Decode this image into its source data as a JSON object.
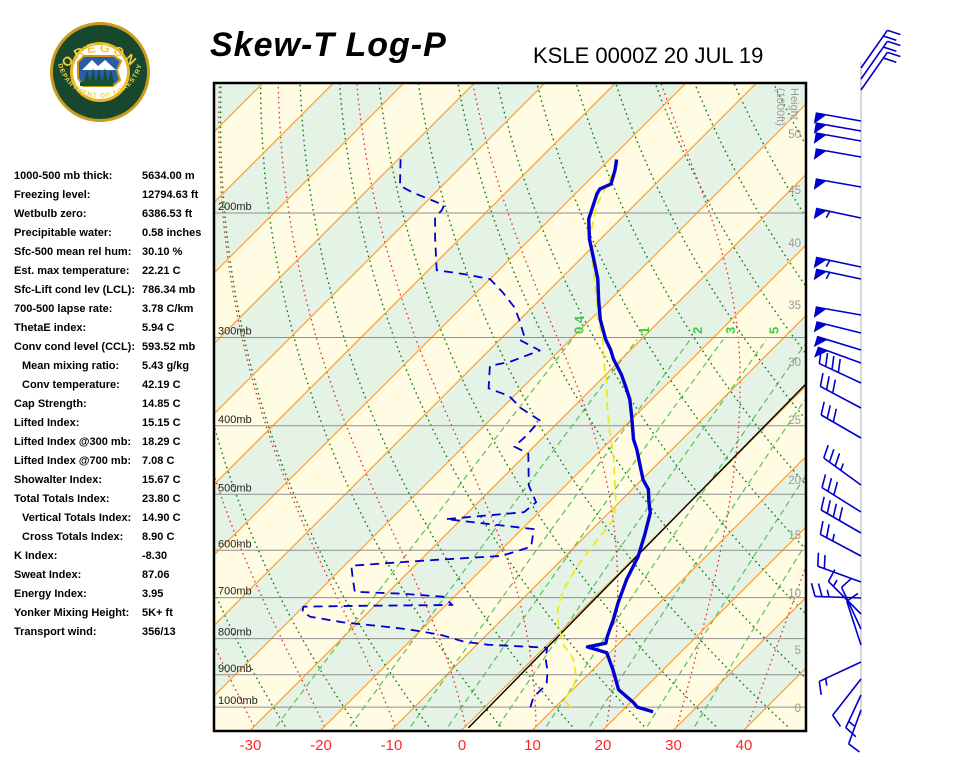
{
  "header": {
    "title": "Skew-T Log-P",
    "station_line": "KSLE 0000Z 20 JUL 19"
  },
  "logo": {
    "arc_top_text": "OREGON",
    "arc_bottom_text": "DEPARTMENT OF FORESTRY"
  },
  "stats": [
    {
      "label": "1000-500 mb thick:",
      "value": "5634.00 m",
      "indent": 0
    },
    {
      "label": "Freezing level:",
      "value": "12794.63 ft",
      "indent": 0
    },
    {
      "label": "Wetbulb zero:",
      "value": "6386.53 ft",
      "indent": 0
    },
    {
      "label": "Precipitable water:",
      "value": "0.58 inches",
      "indent": 0
    },
    {
      "label": "Sfc-500 mean rel hum:",
      "value": "30.10 %",
      "indent": 0
    },
    {
      "label": "Est. max temperature:",
      "value": "22.21 C",
      "indent": 0
    },
    {
      "label": "Sfc-Lift cond lev (LCL):",
      "value": "786.34 mb",
      "indent": 0
    },
    {
      "label": "700-500 lapse rate:",
      "value": "3.78 C/km",
      "indent": 0
    },
    {
      "label": "ThetaE index:",
      "value": "5.94 C",
      "indent": 0
    },
    {
      "label": "Conv cond level (CCL):",
      "value": "593.52 mb",
      "indent": 0
    },
    {
      "label": "Mean mixing ratio:",
      "value": "5.43 g/kg",
      "indent": 1
    },
    {
      "label": "Conv temperature:",
      "value": "42.19 C",
      "indent": 1
    },
    {
      "label": "Cap Strength:",
      "value": "14.85 C",
      "indent": 0
    },
    {
      "label": "Lifted Index:",
      "value": "15.15 C",
      "indent": 0
    },
    {
      "label": "Lifted Index @300 mb:",
      "value": "18.29 C",
      "indent": 0
    },
    {
      "label": "Lifted Index @700 mb:",
      "value": "7.08 C",
      "indent": 0
    },
    {
      "label": "Showalter Index:",
      "value": "15.67 C",
      "indent": 0
    },
    {
      "label": "Total Totals Index:",
      "value": "23.80 C",
      "indent": 0
    },
    {
      "label": "Vertical Totals Index:",
      "value": "14.90 C",
      "indent": 1
    },
    {
      "label": "Cross Totals Index:",
      "value": "8.90 C",
      "indent": 1
    },
    {
      "label": "K Index:",
      "value": "-8.30",
      "indent": 0
    },
    {
      "label": "Sweat Index:",
      "value": "87.06",
      "indent": 0
    },
    {
      "label": "Energy Index:",
      "value": "3.95",
      "indent": 0
    },
    {
      "label": "Yonker Mixing Height:",
      "value": "5K+ ft",
      "indent": 0
    },
    {
      "label": "Transport wind:",
      "value": "356/13",
      "indent": 0
    }
  ],
  "chart_data": {
    "type": "skewt-log-p",
    "title": "Skew-T Log-P",
    "station": "KSLE 0000Z 20 JUL 19",
    "pressure_lines_mb": [
      200,
      300,
      400,
      500,
      600,
      700,
      800,
      900,
      1000
    ],
    "pressure_label_suffix": "mb",
    "temp_ticks_c": [
      -30,
      -20,
      -10,
      0,
      10,
      20,
      30,
      40
    ],
    "height_axis_label_1": "Height",
    "height_axis_label_2": "(1000ft)",
    "height_ticks_1000ft": [
      [
        0,
        708
      ],
      [
        5,
        650
      ],
      [
        10,
        593
      ],
      [
        15,
        535
      ],
      [
        20,
        480
      ],
      [
        25,
        420
      ],
      [
        30,
        362
      ],
      [
        35,
        305
      ],
      [
        40,
        243
      ],
      [
        45,
        190
      ],
      [
        50,
        134
      ]
    ],
    "isotherm_step_c": 10,
    "isotherm_range_c": [
      -130,
      50
    ],
    "dry_adiabats_theta_c": {
      "min": -40,
      "max": 200,
      "step": 10
    },
    "moist_adiabats_thetaw_c": {
      "min": -80,
      "max": 40,
      "step": 10
    },
    "mixing_ratio_lines_gkg": [
      0.4,
      1,
      2,
      3,
      5,
      8,
      12,
      20,
      30
    ],
    "mixing_ratio_labeled_gkg": [
      "0.4",
      "1",
      "2",
      "3",
      "5"
    ],
    "temperature_profile_p_t": [
      [
        1015,
        24.5
      ],
      [
        1000,
        21.6
      ],
      [
        985,
        20.4
      ],
      [
        945,
        16.5
      ],
      [
        886,
        12.9
      ],
      [
        838,
        9.6
      ],
      [
        822,
        6.0
      ],
      [
        812,
        8.1
      ],
      [
        796,
        7.4
      ],
      [
        752,
        5.8
      ],
      [
        712,
        4.1
      ],
      [
        660,
        2.0
      ],
      [
        613,
        0.4
      ],
      [
        570,
        -1.8
      ],
      [
        531,
        -4.1
      ],
      [
        514,
        -5.7
      ],
      [
        492,
        -7.7
      ],
      [
        477,
        -9.8
      ],
      [
        461,
        -11.6
      ],
      [
        432,
        -15.0
      ],
      [
        418,
        -16.9
      ],
      [
        388,
        -20.4
      ],
      [
        367,
        -23.1
      ],
      [
        352,
        -25.5
      ],
      [
        338,
        -27.9
      ],
      [
        322,
        -31.1
      ],
      [
        312,
        -32.9
      ],
      [
        302,
        -35.0
      ],
      [
        283,
        -38.6
      ],
      [
        265,
        -41.7
      ],
      [
        248,
        -44.7
      ],
      [
        232,
        -48.2
      ],
      [
        218,
        -51.5
      ],
      [
        204,
        -54.5
      ],
      [
        188,
        -56.9
      ],
      [
        185,
        -57.2
      ],
      [
        182,
        -56.3
      ],
      [
        174,
        -57.7
      ],
      [
        168,
        -59.0
      ]
    ],
    "dewpoint_profile_p_t": [
      [
        1001,
        6.5
      ],
      [
        969,
        5.5
      ],
      [
        928,
        5.5
      ],
      [
        890,
        3.8
      ],
      [
        855,
        1.8
      ],
      [
        824,
        0.4
      ],
      [
        816,
        -8.5
      ],
      [
        808,
        -12.3
      ],
      [
        790,
        -16.6
      ],
      [
        777,
        -21.6
      ],
      [
        769,
        -25.8
      ],
      [
        759,
        -32.1
      ],
      [
        745,
        -37.6
      ],
      [
        733,
        -39.4
      ],
      [
        721,
        -40.0
      ],
      [
        719,
        -32.1
      ],
      [
        717,
        -19.1
      ],
      [
        698,
        -21.6
      ],
      [
        691,
        -28.1
      ],
      [
        687,
        -34.8
      ],
      [
        659,
        -36.9
      ],
      [
        631,
        -39.0
      ],
      [
        621,
        -29.8
      ],
      [
        611,
        -19.1
      ],
      [
        593,
        -16.2
      ],
      [
        560,
        -18.3
      ],
      [
        542,
        -32.2
      ],
      [
        530,
        -22.1
      ],
      [
        513,
        -21.8
      ],
      [
        486,
        -25.2
      ],
      [
        438,
        -29.8
      ],
      [
        428,
        -32.8
      ],
      [
        413,
        -32.6
      ],
      [
        393,
        -32.9
      ],
      [
        378,
        -37.2
      ],
      [
        363,
        -40.7
      ],
      [
        354,
        -44.7
      ],
      [
        329,
        -47.7
      ],
      [
        325,
        -45.5
      ],
      [
        313,
        -42.8
      ],
      [
        303,
        -46.9
      ],
      [
        300,
        -46.8
      ],
      [
        283,
        -50.1
      ],
      [
        272,
        -52.5
      ],
      [
        259,
        -56.3
      ],
      [
        248,
        -60.0
      ],
      [
        244,
        -64.5
      ],
      [
        241,
        -68.8
      ],
      [
        217,
        -73.6
      ],
      [
        203,
        -76.5
      ],
      [
        198,
        -76.6
      ],
      [
        195,
        -77.0
      ],
      [
        192,
        -79.3
      ],
      [
        187,
        -83.3
      ],
      [
        183,
        -86.0
      ],
      [
        167,
        -89.9
      ]
    ],
    "wetbulb_profile_p_t": [
      [
        1001,
        12.2
      ],
      [
        975,
        10.1
      ],
      [
        944,
        9.9
      ],
      [
        907,
        8.7
      ],
      [
        855,
        5.7
      ],
      [
        816,
        2.3
      ],
      [
        769,
        -1.0
      ],
      [
        728,
        -3.5
      ],
      [
        682,
        -5.5
      ],
      [
        627,
        -7.0
      ],
      [
        542,
        -8.4
      ],
      [
        513,
        -10.5
      ],
      [
        475,
        -14.0
      ],
      [
        441,
        -17.4
      ],
      [
        410,
        -21.1
      ],
      [
        377,
        -25.1
      ],
      [
        348,
        -28.7
      ],
      [
        324,
        -32.2
      ],
      [
        300,
        -35.7
      ],
      [
        281,
        -39.3
      ],
      [
        266,
        -41.8
      ],
      [
        249,
        -45.0
      ],
      [
        233,
        -48.2
      ],
      [
        216,
        -51.8
      ],
      [
        196,
        -55.2
      ],
      [
        170,
        -58.3
      ]
    ],
    "reference_line_p_t": [
      [
        1070,
        0.6
      ],
      [
        350,
        -0.3
      ]
    ],
    "wind_barbs_y_dir_spd_side": [
      [
        68,
        55,
        20,
        -1
      ],
      [
        79,
        55,
        20,
        -1
      ],
      [
        90,
        55,
        20,
        -1
      ],
      [
        121,
        170,
        50,
        1
      ],
      [
        131,
        170,
        50,
        1
      ],
      [
        141,
        170,
        50,
        1
      ],
      [
        157,
        170,
        50,
        1
      ],
      [
        187,
        170,
        50,
        1
      ],
      [
        218,
        168,
        55,
        1
      ],
      [
        267,
        168,
        55,
        1
      ],
      [
        279,
        168,
        55,
        1
      ],
      [
        315,
        170,
        50,
        1
      ],
      [
        333,
        166,
        50,
        1
      ],
      [
        350,
        163,
        50,
        1
      ],
      [
        363,
        160,
        50,
        1
      ],
      [
        383,
        155,
        40,
        -1
      ],
      [
        408,
        152,
        30,
        -1
      ],
      [
        438,
        150,
        30,
        -1
      ],
      [
        485,
        144,
        35,
        -1
      ],
      [
        512,
        148,
        30,
        -1
      ],
      [
        533,
        150,
        40,
        -1
      ],
      [
        556,
        152,
        25,
        -1
      ],
      [
        582,
        160,
        20,
        -1
      ],
      [
        598,
        178,
        25,
        -1
      ],
      [
        614,
        135,
        15,
        -1
      ],
      [
        629,
        115,
        10,
        -1
      ],
      [
        645,
        108,
        10,
        -1
      ],
      [
        662,
        205,
        15,
        1
      ],
      [
        679,
        232,
        10,
        1
      ],
      [
        695,
        245,
        15,
        1
      ],
      [
        710,
        250,
        10,
        1
      ]
    ],
    "colors": {
      "band_yellow": "#fffce3",
      "band_green": "#e4f3e6",
      "isotherm": "#ff9f2e",
      "isobar": "#8f8f8f",
      "dry_adiabat": "#117a11",
      "moist_adiabat": "#e03131",
      "mixing_ratio": "#57c157",
      "mixing_label": "#3ecb3e",
      "temperature": "#0000d0",
      "dewpoint": "#0000d0",
      "wetbulb": "#efe81c",
      "reference": "#000000",
      "wind_barb": "#0000cc",
      "barb_staff": "#cccccc",
      "temp_axis_label": "#ff2626",
      "pressure_label": "#222222",
      "height_label": "#9a9a9a",
      "border": "#000000"
    }
  }
}
